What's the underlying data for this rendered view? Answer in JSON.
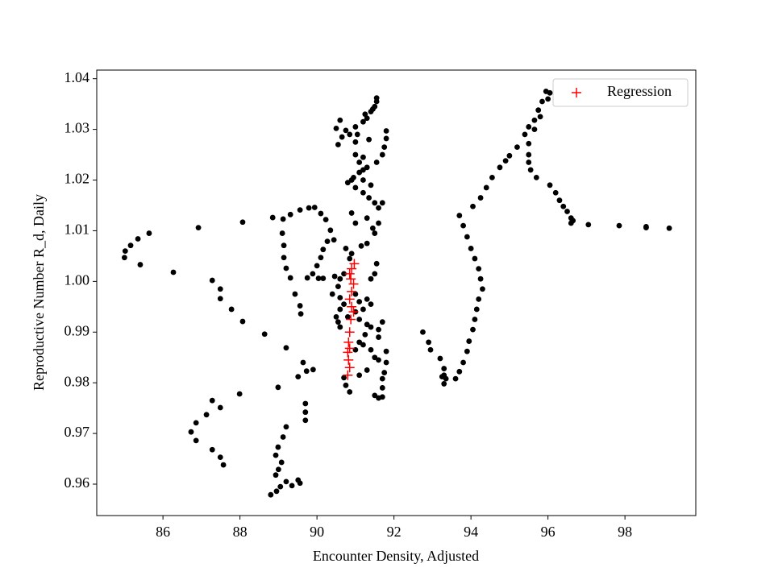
{
  "chart_data": {
    "type": "scatter",
    "xlabel": "Encounter Density, Adjusted",
    "ylabel": "Reproductive Number R_d, Daily",
    "xlim": [
      84.28,
      99.84
    ],
    "ylim": [
      0.9538,
      1.0417
    ],
    "xticks": [
      86,
      88,
      90,
      92,
      94,
      96,
      98
    ],
    "yticks": [
      0.96,
      0.97,
      0.98,
      0.99,
      {
        "value": 1.0,
        "label": "1.00"
      },
      1.01,
      1.02,
      1.03,
      1.04
    ],
    "legend": "upper right",
    "series": [
      {
        "color": "#000000",
        "marker": "o",
        "x": [
          85.02,
          85.0,
          85.16,
          85.35,
          85.64,
          85.41,
          86.27,
          86.92,
          88.07,
          87.28,
          87.49,
          87.49,
          87.78,
          88.07,
          88.64,
          89.2,
          88.99,
          87.99,
          87.28,
          87.13,
          86.86,
          86.73,
          86.86,
          87.28,
          87.49,
          87.57,
          87.49,
          89.2,
          89.12,
          88.99,
          88.93,
          89.08,
          89.0,
          88.93,
          89.05,
          88.95,
          88.8,
          89.2,
          89.35,
          89.56,
          89.51,
          89.7,
          89.7,
          89.7,
          89.64,
          89.51,
          89.9,
          89.73,
          88.85,
          89.12,
          89.31,
          89.56,
          89.79,
          89.94,
          90.1,
          90.23,
          90.35,
          90.44,
          90.27,
          90.16,
          90.1,
          90.0,
          89.89,
          89.75,
          89.1,
          89.14,
          89.14,
          89.2,
          89.31,
          89.43,
          89.56,
          89.58,
          90.04,
          90.16,
          90.46,
          91.55,
          91.55,
          91.5,
          91.4,
          91.3,
          91.2,
          91.0,
          90.85,
          90.6,
          90.5,
          90.75,
          91.8,
          91.8,
          91.75,
          91.7,
          91.55,
          91.3,
          91.2,
          91.0,
          91.1,
          90.9,
          90.8,
          91.0,
          91.2,
          91.35,
          91.5,
          91.7,
          91.6,
          90.9,
          91.0,
          91.3,
          91.45,
          91.6,
          91.5,
          91.3,
          91.15,
          90.9,
          90.75,
          90.85,
          91.55,
          91.5,
          91.4,
          90.7,
          90.6,
          90.55,
          90.4,
          90.6,
          90.7,
          91.0,
          91.1,
          91.3,
          91.4,
          91.2,
          91.0,
          90.6,
          90.5,
          90.55,
          90.6,
          90.8,
          91.1,
          91.3,
          91.4,
          91.6,
          91.25,
          91.1,
          91.0,
          91.2,
          91.4,
          91.5,
          91.6,
          91.8,
          91.8,
          91.75,
          91.3,
          91.1,
          90.7,
          90.75,
          90.85,
          91.5,
          91.6,
          91.7,
          91.7,
          91.7,
          91.7,
          91.6,
          90.65,
          90.55,
          91.0,
          91.4,
          91.2,
          90.95,
          91.1,
          91.2,
          91.05,
          91.35,
          91.25,
          91.45,
          93.7,
          93.8,
          93.9,
          94.0,
          94.1,
          94.2,
          94.25,
          94.3,
          94.2,
          94.15,
          94.1,
          94.05,
          93.95,
          93.9,
          93.8,
          93.7,
          93.6,
          93.35,
          93.3,
          93.25,
          93.3,
          93.2,
          92.95,
          92.9,
          92.75,
          93.3,
          94.05,
          94.25,
          94.4,
          94.55,
          94.75,
          94.9,
          95.0,
          95.2,
          95.4,
          95.5,
          95.65,
          95.75,
          95.85,
          95.95,
          96.05,
          96.0,
          95.8,
          95.65,
          95.5,
          95.5,
          95.5,
          95.55,
          95.7,
          96.05,
          96.2,
          96.3,
          96.4,
          96.5,
          96.6,
          96.65,
          96.6,
          97.05,
          97.85,
          98.55,
          98.55,
          99.15
        ],
        "values": [
          1.006,
          1.0047,
          1.0071,
          1.0084,
          1.0095,
          1.0033,
          1.0018,
          1.0106,
          1.0117,
          1.0002,
          0.9985,
          0.9966,
          0.9945,
          0.9921,
          0.9896,
          0.9869,
          0.9791,
          0.9778,
          0.9765,
          0.9737,
          0.9721,
          0.9703,
          0.9686,
          0.9668,
          0.9653,
          0.9638,
          0.9751,
          0.9713,
          0.9693,
          0.9673,
          0.9657,
          0.9643,
          0.9629,
          0.9618,
          0.9595,
          0.9586,
          0.9579,
          0.9605,
          0.9597,
          0.9602,
          0.9608,
          0.9726,
          0.9742,
          0.9759,
          0.984,
          0.9812,
          0.9826,
          0.9823,
          1.0126,
          1.0123,
          1.0132,
          1.0141,
          1.0145,
          1.0146,
          1.0134,
          1.0122,
          1.0101,
          1.0082,
          1.0079,
          1.0063,
          1.0047,
          1.0031,
          1.0015,
          1.0007,
          1.0095,
          1.0071,
          1.0047,
          1.0026,
          1.0007,
          0.9975,
          0.9952,
          0.9936,
          1.0006,
          1.0006,
          1.001,
          1.0362,
          1.0355,
          1.0345,
          1.0335,
          1.0322,
          1.0315,
          1.0305,
          1.029,
          1.0318,
          1.0302,
          1.0298,
          1.0297,
          1.0282,
          1.0265,
          1.025,
          1.0235,
          1.0225,
          1.022,
          1.025,
          1.0235,
          1.02,
          1.0195,
          1.0185,
          1.0175,
          1.0165,
          1.0155,
          1.0155,
          1.0145,
          1.0135,
          1.0115,
          1.0125,
          1.0105,
          1.0115,
          1.0095,
          1.0075,
          1.007,
          1.0055,
          1.0065,
          1.0045,
          1.0035,
          1.0015,
          1.0005,
          1.0015,
          1.0005,
          0.999,
          0.9975,
          0.9968,
          0.9955,
          0.9975,
          0.996,
          0.9965,
          0.9955,
          0.9945,
          0.994,
          0.9945,
          0.993,
          0.992,
          0.991,
          0.993,
          0.9925,
          0.9915,
          0.991,
          0.9905,
          0.9895,
          0.988,
          0.9865,
          0.9875,
          0.9865,
          0.985,
          0.9845,
          0.9862,
          0.984,
          0.982,
          0.9825,
          0.9815,
          0.981,
          0.9795,
          0.9782,
          0.9775,
          0.977,
          0.9772,
          0.979,
          0.9808,
          0.992,
          0.989,
          1.0285,
          1.027,
          1.0275,
          1.019,
          1.02,
          1.0205,
          1.0215,
          1.0245,
          1.029,
          1.028,
          1.033,
          1.034,
          1.013,
          1.011,
          1.0088,
          1.0065,
          1.0045,
          1.0025,
          1.0005,
          0.9985,
          0.9965,
          0.9945,
          0.9925,
          0.9905,
          0.9882,
          0.9862,
          0.984,
          0.9822,
          0.9808,
          0.9808,
          0.9798,
          0.9812,
          0.9828,
          0.9848,
          0.9865,
          0.988,
          0.99,
          0.9815,
          1.0148,
          1.0165,
          1.0185,
          1.0205,
          1.0225,
          1.0238,
          1.0248,
          1.0265,
          1.029,
          1.0305,
          1.0318,
          1.0338,
          1.0355,
          1.0375,
          1.0372,
          1.036,
          1.0325,
          1.03,
          1.0272,
          1.025,
          1.0235,
          1.022,
          1.0205,
          1.019,
          1.0175,
          1.016,
          1.0148,
          1.0138,
          1.0125,
          1.012,
          1.0115,
          1.0112,
          1.011,
          1.0108,
          1.0106,
          1.0105
        ]
      },
      {
        "name": "Regression",
        "color": "#ff0000",
        "marker": "+",
        "x": [
          90.97,
          90.9,
          90.85,
          90.88,
          90.95,
          90.9,
          90.85,
          90.9,
          90.95,
          90.88,
          90.85,
          90.82,
          90.85,
          90.8,
          90.82,
          90.85,
          90.8
        ],
        "values": [
          1.0035,
          1.0025,
          1.0015,
          1.0005,
          0.9995,
          0.998,
          0.9965,
          0.995,
          0.994,
          0.9925,
          0.99,
          0.988,
          0.9868,
          0.986,
          0.9845,
          0.983,
          0.9815
        ]
      }
    ]
  }
}
